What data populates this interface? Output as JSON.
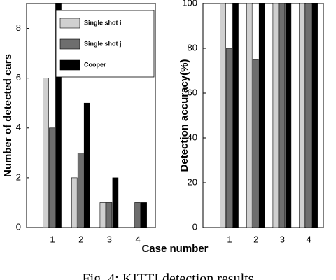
{
  "xlabel": "Case number",
  "caption": "Fig. 4: KITTI detection results",
  "chart_data": [
    {
      "type": "bar",
      "ylabel": "Number of detected cars",
      "categories": [
        "1",
        "2",
        "3",
        "4"
      ],
      "series": [
        {
          "name": "Single shot i",
          "color": "#d0d0d0",
          "values": [
            6,
            2,
            1,
            0
          ]
        },
        {
          "name": "Single shot j",
          "color": "#6e6e6e",
          "values": [
            4,
            3,
            1,
            1
          ]
        },
        {
          "name": "Cooper",
          "color": "#000000",
          "values": [
            9,
            5,
            2,
            1
          ]
        }
      ],
      "ylim": [
        0,
        9
      ],
      "yticks": [
        0,
        2,
        4,
        6,
        8
      ],
      "legend": "upper right"
    },
    {
      "type": "bar",
      "ylabel": "Detection accuracy(%)",
      "categories": [
        "1",
        "2",
        "3",
        "4"
      ],
      "series": [
        {
          "color": "#d0d0d0",
          "values": [
            100,
            100,
            100,
            100
          ]
        },
        {
          "color": "#6e6e6e",
          "values": [
            80,
            75,
            100,
            100
          ]
        },
        {
          "color": "#000000",
          "values": [
            100,
            100,
            100,
            100
          ]
        }
      ],
      "ylim": [
        0,
        100
      ],
      "yticks": [
        0,
        20,
        40,
        60,
        80,
        100
      ]
    }
  ]
}
